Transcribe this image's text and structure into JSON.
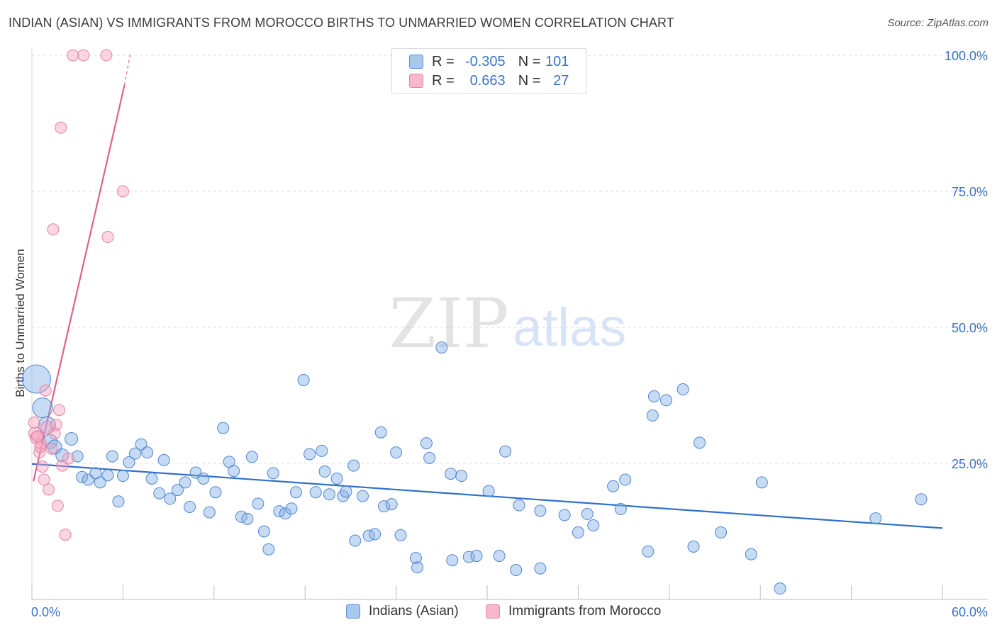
{
  "header": {
    "title": "INDIAN (ASIAN) VS IMMIGRANTS FROM MOROCCO BIRTHS TO UNMARRIED WOMEN CORRELATION CHART",
    "source": "Source: ZipAtlas.com"
  },
  "watermark": {
    "zip": "ZIP",
    "atlas": "atlas"
  },
  "legend": {
    "rows": [
      {
        "r_label": "R =",
        "r_value": "-0.305",
        "n_label": "N =",
        "n_value": "101",
        "fill": "#a9c8ee",
        "stroke": "#5b8fd4"
      },
      {
        "r_label": "R =",
        "r_value": "0.663",
        "n_label": "N =",
        "n_value": "27",
        "fill": "#f7b8cb",
        "stroke": "#e886a6"
      }
    ]
  },
  "bottom_legend": [
    {
      "label": "Indians (Asian)",
      "fill": "#a9c8ee",
      "stroke": "#5b8fd4"
    },
    {
      "label": "Immigrants from Morocco",
      "fill": "#f7b8cb",
      "stroke": "#e886a6"
    }
  ],
  "colors": {
    "blue_fill": "rgba(132,176,230,0.45)",
    "blue_stroke": "#4f86cf",
    "blue_line": "#2f6fcc",
    "pink_fill": "rgba(245,164,190,0.45)",
    "pink_stroke": "#e582a4",
    "pink_line": "#e0608e",
    "grid": "#dcdcdc",
    "axis_text": "#3a73c8"
  },
  "chart_data": {
    "type": "scatter",
    "title": "INDIAN (ASIAN) VS IMMIGRANTS FROM MOROCCO BIRTHS TO UNMARRIED WOMEN CORRELATION CHART",
    "xlabel": "",
    "ylabel": "Births to Unmarried Women",
    "xlim": [
      0,
      60
    ],
    "ylim": [
      0,
      100
    ],
    "x_tick_labels": [
      "0.0%",
      "60.0%"
    ],
    "y_ticks": [
      25,
      50,
      75,
      100
    ],
    "y_tick_labels": [
      "25.0%",
      "50.0%",
      "75.0%",
      "100.0%"
    ],
    "grid": true,
    "series": [
      {
        "name": "Indians (Asian)",
        "color": "#4f86cf",
        "trend": {
          "x": [
            0,
            60
          ],
          "y": [
            24.9,
            13.1
          ]
        },
        "points": [
          {
            "x": 0.3,
            "y": 40.5,
            "s": 20
          },
          {
            "x": 0.7,
            "y": 35.2,
            "s": 14
          },
          {
            "x": 1.0,
            "y": 32.0,
            "s": 12
          },
          {
            "x": 1.2,
            "y": 29.0,
            "s": 10
          },
          {
            "x": 1.5,
            "y": 28.0,
            "s": 10
          },
          {
            "x": 2.0,
            "y": 26.5,
            "s": 9
          },
          {
            "x": 2.6,
            "y": 29.5,
            "s": 9
          },
          {
            "x": 3.0,
            "y": 26.3,
            "s": 8
          },
          {
            "x": 3.3,
            "y": 22.5,
            "s": 8
          },
          {
            "x": 3.7,
            "y": 22.0,
            "s": 8
          },
          {
            "x": 4.2,
            "y": 23.2,
            "s": 8
          },
          {
            "x": 4.5,
            "y": 21.5,
            "s": 8
          },
          {
            "x": 5.0,
            "y": 22.8,
            "s": 8
          },
          {
            "x": 5.3,
            "y": 26.3,
            "s": 8
          },
          {
            "x": 5.7,
            "y": 18.0,
            "s": 8
          },
          {
            "x": 6.0,
            "y": 22.7,
            "s": 8
          },
          {
            "x": 6.4,
            "y": 25.2,
            "s": 8
          },
          {
            "x": 6.8,
            "y": 26.8,
            "s": 8
          },
          {
            "x": 7.2,
            "y": 28.5,
            "s": 8
          },
          {
            "x": 7.6,
            "y": 27.0,
            "s": 8
          },
          {
            "x": 7.9,
            "y": 22.2,
            "s": 8
          },
          {
            "x": 8.4,
            "y": 19.5,
            "s": 8
          },
          {
            "x": 8.7,
            "y": 25.6,
            "s": 8
          },
          {
            "x": 9.1,
            "y": 18.5,
            "s": 8
          },
          {
            "x": 9.6,
            "y": 20.1,
            "s": 8
          },
          {
            "x": 10.1,
            "y": 21.5,
            "s": 8
          },
          {
            "x": 10.4,
            "y": 17.0,
            "s": 8
          },
          {
            "x": 10.8,
            "y": 23.3,
            "s": 8
          },
          {
            "x": 11.3,
            "y": 22.2,
            "s": 8
          },
          {
            "x": 11.7,
            "y": 16.0,
            "s": 8
          },
          {
            "x": 12.1,
            "y": 19.7,
            "s": 8
          },
          {
            "x": 12.6,
            "y": 31.5,
            "s": 8
          },
          {
            "x": 13.0,
            "y": 25.3,
            "s": 8
          },
          {
            "x": 13.3,
            "y": 23.6,
            "s": 8
          },
          {
            "x": 13.8,
            "y": 15.2,
            "s": 8
          },
          {
            "x": 14.2,
            "y": 14.8,
            "s": 8
          },
          {
            "x": 14.5,
            "y": 26.2,
            "s": 8
          },
          {
            "x": 14.9,
            "y": 17.6,
            "s": 8
          },
          {
            "x": 15.3,
            "y": 12.5,
            "s": 8
          },
          {
            "x": 15.6,
            "y": 9.2,
            "s": 8
          },
          {
            "x": 15.9,
            "y": 23.2,
            "s": 8
          },
          {
            "x": 16.3,
            "y": 16.2,
            "s": 8
          },
          {
            "x": 16.7,
            "y": 15.8,
            "s": 8
          },
          {
            "x": 17.1,
            "y": 16.7,
            "s": 8
          },
          {
            "x": 17.4,
            "y": 19.7,
            "s": 8
          },
          {
            "x": 17.9,
            "y": 40.3,
            "s": 8
          },
          {
            "x": 18.3,
            "y": 26.7,
            "s": 8
          },
          {
            "x": 18.7,
            "y": 19.7,
            "s": 8
          },
          {
            "x": 19.1,
            "y": 27.3,
            "s": 8
          },
          {
            "x": 19.3,
            "y": 23.5,
            "s": 8
          },
          {
            "x": 19.6,
            "y": 19.3,
            "s": 8
          },
          {
            "x": 20.1,
            "y": 22.2,
            "s": 8
          },
          {
            "x": 20.5,
            "y": 19.0,
            "s": 8
          },
          {
            "x": 20.7,
            "y": 19.8,
            "s": 8
          },
          {
            "x": 21.2,
            "y": 24.6,
            "s": 8
          },
          {
            "x": 21.3,
            "y": 10.8,
            "s": 8
          },
          {
            "x": 21.8,
            "y": 19.0,
            "s": 8
          },
          {
            "x": 22.2,
            "y": 11.7,
            "s": 8
          },
          {
            "x": 22.6,
            "y": 12.0,
            "s": 8
          },
          {
            "x": 23.0,
            "y": 30.7,
            "s": 8
          },
          {
            "x": 23.2,
            "y": 17.1,
            "s": 8
          },
          {
            "x": 23.7,
            "y": 17.5,
            "s": 8
          },
          {
            "x": 24.0,
            "y": 27.0,
            "s": 8
          },
          {
            "x": 24.3,
            "y": 11.8,
            "s": 8
          },
          {
            "x": 25.3,
            "y": 7.6,
            "s": 8
          },
          {
            "x": 25.4,
            "y": 5.9,
            "s": 8
          },
          {
            "x": 26.0,
            "y": 28.7,
            "s": 8
          },
          {
            "x": 26.2,
            "y": 26.0,
            "s": 8
          },
          {
            "x": 27.0,
            "y": 46.3,
            "s": 8
          },
          {
            "x": 27.6,
            "y": 23.1,
            "s": 8
          },
          {
            "x": 27.7,
            "y": 7.2,
            "s": 8
          },
          {
            "x": 28.3,
            "y": 22.7,
            "s": 8
          },
          {
            "x": 28.8,
            "y": 7.8,
            "s": 8
          },
          {
            "x": 29.3,
            "y": 8.0,
            "s": 8
          },
          {
            "x": 30.1,
            "y": 19.9,
            "s": 8
          },
          {
            "x": 30.8,
            "y": 8.0,
            "s": 8
          },
          {
            "x": 31.2,
            "y": 27.2,
            "s": 8
          },
          {
            "x": 31.9,
            "y": 5.4,
            "s": 8
          },
          {
            "x": 32.1,
            "y": 17.3,
            "s": 8
          },
          {
            "x": 33.5,
            "y": 5.7,
            "s": 8
          },
          {
            "x": 33.5,
            "y": 16.3,
            "s": 8
          },
          {
            "x": 35.1,
            "y": 15.5,
            "s": 8
          },
          {
            "x": 36.0,
            "y": 12.3,
            "s": 8
          },
          {
            "x": 36.6,
            "y": 15.7,
            "s": 8
          },
          {
            "x": 37.0,
            "y": 13.6,
            "s": 8
          },
          {
            "x": 38.3,
            "y": 20.8,
            "s": 8
          },
          {
            "x": 38.8,
            "y": 16.6,
            "s": 8
          },
          {
            "x": 39.1,
            "y": 22.0,
            "s": 8
          },
          {
            "x": 40.6,
            "y": 8.8,
            "s": 8
          },
          {
            "x": 40.9,
            "y": 33.8,
            "s": 8
          },
          {
            "x": 41.0,
            "y": 37.3,
            "s": 8
          },
          {
            "x": 41.8,
            "y": 36.6,
            "s": 8
          },
          {
            "x": 42.9,
            "y": 38.6,
            "s": 8
          },
          {
            "x": 43.6,
            "y": 9.7,
            "s": 8
          },
          {
            "x": 44.0,
            "y": 28.8,
            "s": 8
          },
          {
            "x": 45.4,
            "y": 12.3,
            "s": 8
          },
          {
            "x": 47.4,
            "y": 8.3,
            "s": 8
          },
          {
            "x": 48.1,
            "y": 21.5,
            "s": 8
          },
          {
            "x": 49.3,
            "y": 2.0,
            "s": 8
          },
          {
            "x": 55.6,
            "y": 14.9,
            "s": 8
          },
          {
            "x": 58.6,
            "y": 18.4,
            "s": 8
          }
        ]
      },
      {
        "name": "Immigrants from Morocco",
        "color": "#e582a4",
        "trend": {
          "x": [
            0.1,
            6.1
          ],
          "y": [
            21.7,
            94.5
          ],
          "dash_x": [
            6.1,
            6.5
          ],
          "dash_y": [
            94.5,
            100.5
          ]
        },
        "points": [
          {
            "x": 0.2,
            "y": 30.5,
            "s": 9
          },
          {
            "x": 0.3,
            "y": 29.7,
            "s": 9
          },
          {
            "x": 0.5,
            "y": 27.0,
            "s": 8
          },
          {
            "x": 0.6,
            "y": 28.6,
            "s": 8
          },
          {
            "x": 0.7,
            "y": 24.4,
            "s": 8
          },
          {
            "x": 0.8,
            "y": 22.0,
            "s": 8
          },
          {
            "x": 0.9,
            "y": 38.4,
            "s": 8
          },
          {
            "x": 1.0,
            "y": 31.6,
            "s": 9
          },
          {
            "x": 1.1,
            "y": 20.2,
            "s": 8
          },
          {
            "x": 1.3,
            "y": 27.7,
            "s": 8
          },
          {
            "x": 1.4,
            "y": 68.0,
            "s": 8
          },
          {
            "x": 1.6,
            "y": 32.1,
            "s": 8
          },
          {
            "x": 1.7,
            "y": 17.2,
            "s": 8
          },
          {
            "x": 1.8,
            "y": 34.8,
            "s": 8
          },
          {
            "x": 1.9,
            "y": 86.7,
            "s": 8
          },
          {
            "x": 2.0,
            "y": 24.6,
            "s": 8
          },
          {
            "x": 2.2,
            "y": 11.9,
            "s": 8
          },
          {
            "x": 2.4,
            "y": 25.9,
            "s": 8
          },
          {
            "x": 2.7,
            "y": 100.0,
            "s": 8
          },
          {
            "x": 3.4,
            "y": 100.0,
            "s": 8
          },
          {
            "x": 4.9,
            "y": 100.0,
            "s": 8
          },
          {
            "x": 5.0,
            "y": 66.6,
            "s": 8
          },
          {
            "x": 6.0,
            "y": 75.0,
            "s": 8
          },
          {
            "x": 0.15,
            "y": 32.5,
            "s": 8
          },
          {
            "x": 0.35,
            "y": 30.0,
            "s": 8
          },
          {
            "x": 0.55,
            "y": 28.0,
            "s": 8
          },
          {
            "x": 1.5,
            "y": 30.5,
            "s": 8
          }
        ]
      }
    ]
  }
}
